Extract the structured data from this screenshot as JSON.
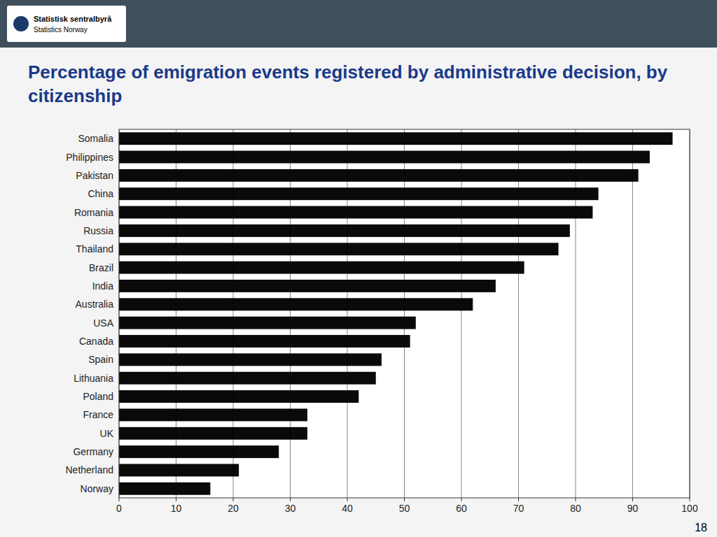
{
  "chart_data": {
    "type": "bar",
    "orientation": "horizontal",
    "title": "Percentage of emigration events registered by administrative decision, by citizenship",
    "annotations": [
      "Statistisk sentralbyrå",
      "Statistics Norway",
      "18"
    ],
    "categories": [
      "Somalia",
      "Philippines",
      "Pakistan",
      "China",
      "Romania",
      "Russia",
      "Thailand",
      "Brazil",
      "India",
      "Australia",
      "USA",
      "Canada",
      "Spain",
      "Lithuania",
      "Poland",
      "France",
      "UK",
      "Germany",
      "Netherland",
      "Norway"
    ],
    "values": [
      97,
      93,
      91,
      84,
      83,
      79,
      77,
      71,
      66,
      62,
      52,
      51,
      46,
      45,
      42,
      33,
      33,
      28,
      21,
      16
    ],
    "color": "#0a0a0a",
    "xlim": [
      0,
      100
    ],
    "xticks": [
      0,
      10,
      20,
      30,
      40,
      50,
      60,
      70,
      80,
      90,
      100
    ],
    "grid": true
  }
}
